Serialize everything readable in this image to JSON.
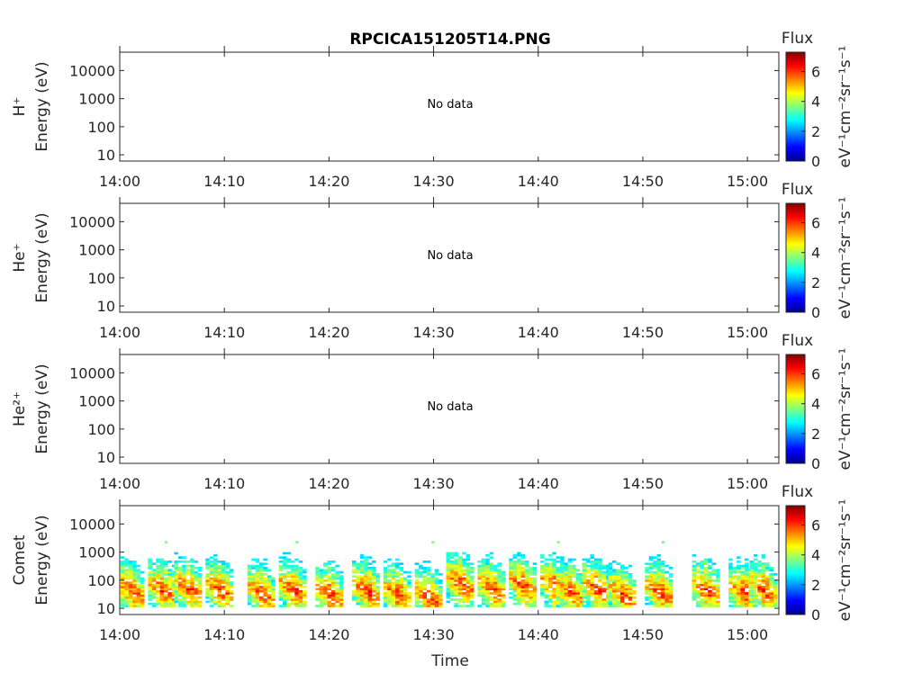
{
  "chart_data": {
    "type": "heatmap",
    "title": "RPCICA151205T14.PNG",
    "xlabel": "Time",
    "x_ticks": [
      "14:00",
      "14:10",
      "14:20",
      "14:30",
      "14:40",
      "14:50",
      "15:00"
    ],
    "x_range_minutes": [
      0,
      63
    ],
    "y_scale": "log",
    "y_ticks": [
      "10",
      "100",
      "1000",
      "10000"
    ],
    "y_range_eV": [
      6,
      45000
    ],
    "colorbar": {
      "label": "Flux",
      "units_label": "eV⁻¹cm⁻²sr⁻¹s⁻¹",
      "ticks": [
        "0",
        "2",
        "4",
        "6"
      ],
      "range": [
        0,
        7.3
      ],
      "colormap": "jet"
    },
    "panels": [
      {
        "ylabel_species": "H⁺",
        "ylabel_units": "Energy (eV)",
        "annotation": "No data",
        "has_data": false
      },
      {
        "ylabel_species": "He⁺",
        "ylabel_units": "Energy (eV)",
        "annotation": "No data",
        "has_data": false
      },
      {
        "ylabel_species": "He²⁺",
        "ylabel_units": "Energy (eV)",
        "annotation": "No data",
        "has_data": false
      },
      {
        "ylabel_species": "Comet",
        "ylabel_units": "Energy (eV)",
        "annotation": "",
        "has_data": true,
        "bursts_minutes_peak_eV": [
          [
            1.0,
            38
          ],
          [
            4.0,
            40
          ],
          [
            6.5,
            45
          ],
          [
            9.5,
            42
          ],
          [
            13.5,
            30
          ],
          [
            16.5,
            42
          ],
          [
            20.0,
            28
          ],
          [
            23.5,
            38
          ],
          [
            26.5,
            28
          ],
          [
            29.5,
            22
          ],
          [
            32.5,
            70
          ],
          [
            35.5,
            45
          ],
          [
            38.5,
            55
          ],
          [
            41.5,
            55
          ],
          [
            43.0,
            35
          ],
          [
            45.5,
            45
          ],
          [
            48.0,
            28
          ],
          [
            51.5,
            35
          ],
          [
            56.0,
            40
          ],
          [
            59.5,
            32
          ],
          [
            61.5,
            40
          ]
        ]
      }
    ]
  }
}
